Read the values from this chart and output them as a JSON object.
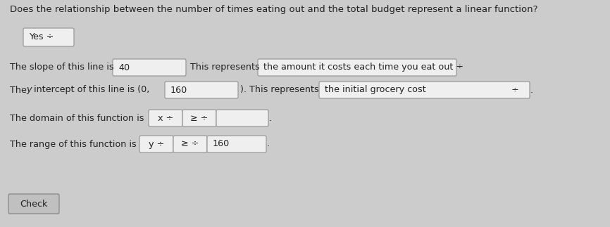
{
  "bg_color": "#cccccc",
  "title": "Does the relationship between the number of times eating out and the total budget represent a linear function?",
  "title_fontsize": 9.5,
  "yes_box_text": "Yes ÷",
  "line1_prefix": "The slope of this line is",
  "line1_box1": "40",
  "line1_mid": "This represents",
  "line1_box2": "the amount it costs each time you eat out ÷",
  "line2_prefix_a": "The ",
  "line2_prefix_b": "y",
  "line2_prefix_c": " intercept of this line is (0,",
  "line2_box1": "160",
  "line2_close": "). This represents",
  "line2_box2": "the initial grocery cost",
  "line2_box2_arrow": "÷",
  "line3_prefix": "The domain of this function is",
  "line3_box1": "x ÷",
  "line3_box2": "≥ ÷",
  "line3_box3": "",
  "line4_prefix": "The range of this function is",
  "line4_box1": "y ÷",
  "line4_box2": "≥ ÷",
  "line4_box3": "160",
  "check_btn": "Check",
  "box_bg": "#efefef",
  "box_border": "#999999",
  "text_color": "#222222",
  "btn_bg": "#c0c0c0",
  "btn_border": "#888888",
  "fs": 9.2
}
